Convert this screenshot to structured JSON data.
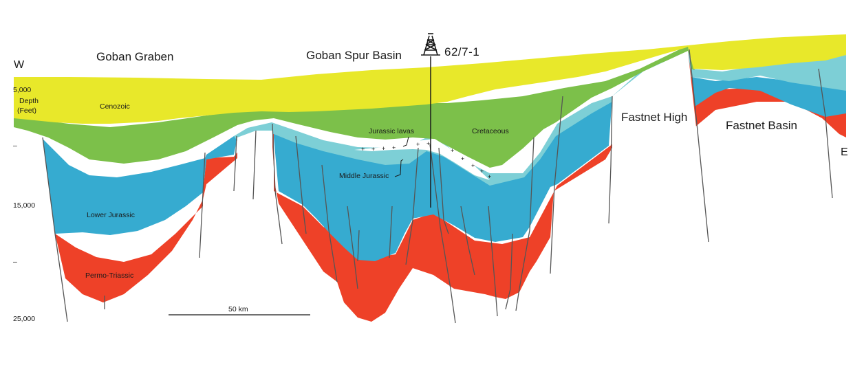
{
  "labels": {
    "west": "W",
    "east": "E",
    "goban_graben": "Goban Graben",
    "goban_spur_basin": "Goban Spur Basin",
    "well": "62/7-1",
    "fastnet_high": "Fastnet High",
    "fastnet_basin": "Fastnet Basin"
  },
  "layers": {
    "cenozoic": "Cenozoic",
    "cretaceous": "Cretaceous",
    "jurassic_lavas": "Jurassic lavas",
    "middle_jurassic": "Middle Jurassic",
    "lower_jurassic": "Lower Jurassic",
    "permo_triassic": "Permo-Triassic"
  },
  "depth_axis": {
    "title_line1": "Depth",
    "title_line2": "(Feet)",
    "ticks": [
      {
        "value": 5000,
        "label": "5,000"
      },
      {
        "value": 10000,
        "label": "–"
      },
      {
        "value": 15000,
        "label": "15,000"
      },
      {
        "value": 20000,
        "label": "–"
      },
      {
        "value": 25000,
        "label": "25,000"
      }
    ]
  },
  "scale_bar": {
    "label": "50 km"
  },
  "colors": {
    "cenozoic": "#e8e82a",
    "cretaceous": "#7cc04a",
    "middle_jurassic": "#7dcfd6",
    "lower_jurassic": "#36abd0",
    "permo_triassic": "#ee4128",
    "lavas": "#ffffff"
  },
  "icons": {
    "well": "drilling-rig-icon"
  }
}
